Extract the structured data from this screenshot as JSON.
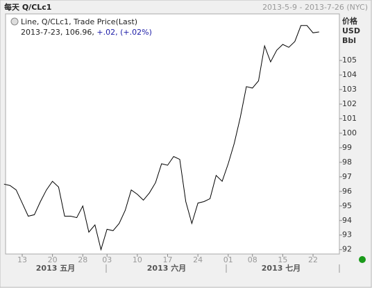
{
  "chart_data": {
    "type": "line",
    "title": "每天 Q/CLc1",
    "subtitle": "2013-5-9 - 2013-7-26 (NYC)",
    "legend_title": "Line, Q/CLc1, Trade Price(Last)",
    "legend_date": "2013-7-23, 106.96, ",
    "legend_change": "+.02, (+.02%)",
    "y_axis_labels": [
      "价格",
      "USD",
      "Bbl"
    ],
    "month_labels": [
      "2013 五月",
      "2013 六月",
      "2013 七月"
    ],
    "categories": [
      null,
      null,
      null,
      "13",
      null,
      null,
      null,
      null,
      "20",
      null,
      null,
      null,
      null,
      "28",
      null,
      null,
      null,
      "03",
      null,
      null,
      null,
      null,
      "10",
      null,
      null,
      null,
      null,
      "17",
      null,
      null,
      null,
      null,
      "24",
      null,
      null,
      null,
      null,
      "01",
      null,
      null,
      null,
      "08",
      null,
      null,
      null,
      null,
      "15",
      null,
      null,
      null,
      null,
      "22",
      null,
      null,
      null,
      null
    ],
    "series": [
      {
        "name": "Q/CLc1",
        "color": "#000000",
        "values": [
          96.5,
          96.4,
          96.1,
          95.2,
          94.3,
          94.4,
          95.3,
          96.1,
          96.7,
          96.3,
          94.3,
          94.3,
          94.2,
          95.0,
          93.2,
          93.7,
          92.0,
          93.4,
          93.3,
          93.8,
          94.7,
          96.1,
          95.8,
          95.4,
          95.9,
          96.6,
          97.9,
          97.8,
          98.4,
          98.2,
          95.3,
          93.8,
          95.2,
          95.3,
          95.5,
          97.1,
          96.7,
          97.9,
          99.3,
          101.1,
          103.2,
          103.1,
          103.6,
          106.0,
          104.9,
          105.7,
          106.1,
          105.9,
          106.3,
          107.4,
          107.4,
          106.9,
          106.96,
          null,
          null,
          null
        ]
      }
    ],
    "ylim": [
      91.7,
      108.2
    ],
    "yticks": [
      92,
      93,
      94,
      95,
      96,
      97,
      98,
      99,
      100,
      101,
      102,
      103,
      104,
      105
    ],
    "grid": false
  }
}
